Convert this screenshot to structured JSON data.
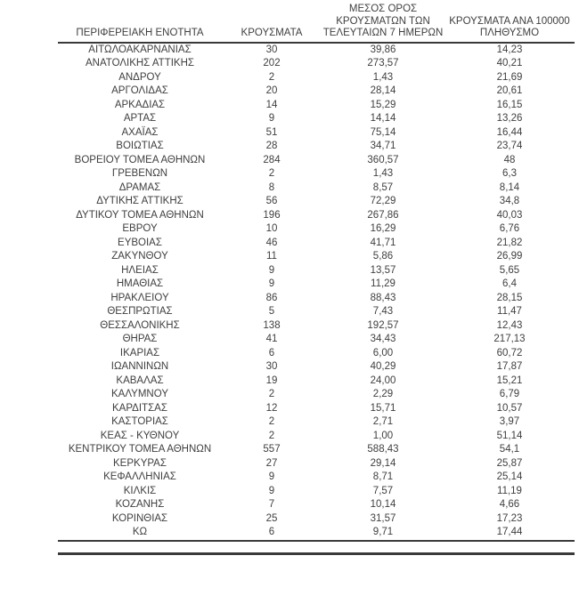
{
  "colors": {
    "text": "#3f3f3f",
    "rule": "#3a3a3a",
    "background": "#ffffff"
  },
  "table": {
    "headers": [
      "ΠΕΡΙΦΕΡΕΙΑΚΗ ΕΝΟΤΗΤΑ",
      "ΚΡΟΥΣΜΑΤΑ",
      "ΜΕΣΟΣ ΟΡΟΣ\nΚΡΟΥΣΜΑΤΩΝ ΤΩΝ\nΤΕΛΕΥΤΑΙΩΝ 7 ΗΜΕΡΩΝ",
      "ΚΡΟΥΣΜΑΤΑ ΑΝΑ 100000\nΠΛΗΘΥΣΜΟ"
    ],
    "rows": [
      [
        "ΑΙΤΩΛΟΑΚΑΡΝΑΝΙΑΣ",
        "30",
        "39,86",
        "14,23"
      ],
      [
        "ΑΝΑΤΟΛΙΚΗΣ ΑΤΤΙΚΗΣ",
        "202",
        "273,57",
        "40,21"
      ],
      [
        "ΑΝΔΡΟΥ",
        "2",
        "1,43",
        "21,69"
      ],
      [
        "ΑΡΓΟΛΙΔΑΣ",
        "20",
        "28,14",
        "20,61"
      ],
      [
        "ΑΡΚΑΔΙΑΣ",
        "14",
        "15,29",
        "16,15"
      ],
      [
        "ΑΡΤΑΣ",
        "9",
        "14,14",
        "13,26"
      ],
      [
        "ΑΧΑΪΑΣ",
        "51",
        "75,14",
        "16,44"
      ],
      [
        "ΒΟΙΩΤΙΑΣ",
        "28",
        "34,71",
        "23,74"
      ],
      [
        "ΒΟΡΕΙΟΥ ΤΟΜΕΑ ΑΘΗΝΩΝ",
        "284",
        "360,57",
        "48"
      ],
      [
        "ΓΡΕΒΕΝΩΝ",
        "2",
        "1,43",
        "6,3"
      ],
      [
        "ΔΡΑΜΑΣ",
        "8",
        "8,57",
        "8,14"
      ],
      [
        "ΔΥΤΙΚΗΣ ΑΤΤΙΚΗΣ",
        "56",
        "72,29",
        "34,8"
      ],
      [
        "ΔΥΤΙΚΟΥ ΤΟΜΕΑ ΑΘΗΝΩΝ",
        "196",
        "267,86",
        "40,03"
      ],
      [
        "ΕΒΡΟΥ",
        "10",
        "16,29",
        "6,76"
      ],
      [
        "ΕΥΒΟΙΑΣ",
        "46",
        "41,71",
        "21,82"
      ],
      [
        "ΖΑΚΥΝΘΟΥ",
        "11",
        "5,86",
        "26,99"
      ],
      [
        "ΗΛΕΙΑΣ",
        "9",
        "13,57",
        "5,65"
      ],
      [
        "ΗΜΑΘΙΑΣ",
        "9",
        "11,29",
        "6,4"
      ],
      [
        "ΗΡΑΚΛΕΙΟΥ",
        "86",
        "88,43",
        "28,15"
      ],
      [
        "ΘΕΣΠΡΩΤΙΑΣ",
        "5",
        "7,43",
        "11,47"
      ],
      [
        "ΘΕΣΣΑΛΟΝΙΚΗΣ",
        "138",
        "192,57",
        "12,43"
      ],
      [
        "ΘΗΡΑΣ",
        "41",
        "34,43",
        "217,13"
      ],
      [
        "ΙΚΑΡΙΑΣ",
        "6",
        "6,00",
        "60,72"
      ],
      [
        "ΙΩΑΝΝΙΝΩΝ",
        "30",
        "40,29",
        "17,87"
      ],
      [
        "ΚΑΒΑΛΑΣ",
        "19",
        "24,00",
        "15,21"
      ],
      [
        "ΚΑΛΥΜΝΟΥ",
        "2",
        "2,29",
        "6,79"
      ],
      [
        "ΚΑΡΔΙΤΣΑΣ",
        "12",
        "15,71",
        "10,57"
      ],
      [
        "ΚΑΣΤΟΡΙΑΣ",
        "2",
        "2,71",
        "3,97"
      ],
      [
        "ΚΕΑΣ - ΚΥΘΝΟΥ",
        "2",
        "1,00",
        "51,14"
      ],
      [
        "ΚΕΝΤΡΙΚΟΥ ΤΟΜΕΑ ΑΘΗΝΩΝ",
        "557",
        "588,43",
        "54,1"
      ],
      [
        "ΚΕΡΚΥΡΑΣ",
        "27",
        "29,14",
        "25,87"
      ],
      [
        "ΚΕΦΑΛΛΗΝΙΑΣ",
        "9",
        "8,71",
        "25,14"
      ],
      [
        "ΚΙΛΚΙΣ",
        "9",
        "7,57",
        "11,19"
      ],
      [
        "ΚΟΖΑΝΗΣ",
        "7",
        "10,14",
        "4,66"
      ],
      [
        "ΚΟΡΙΝΘΙΑΣ",
        "25",
        "31,57",
        "17,23"
      ],
      [
        "ΚΩ",
        "6",
        "9,71",
        "17,44"
      ]
    ]
  }
}
